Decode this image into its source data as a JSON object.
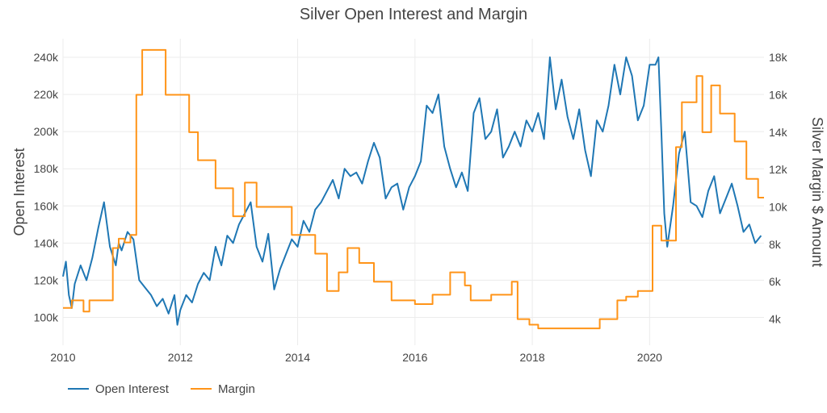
{
  "chart_data": {
    "type": "line",
    "title": "Silver Open Interest and Margin",
    "xlabel": "",
    "ylabel": "Open Interest",
    "y2label": "Silver Margin $ Amount",
    "xlim": [
      2010.0,
      2021.95
    ],
    "ylim": [
      85000,
      250000
    ],
    "y2lim": [
      2600,
      19000
    ],
    "x_ticks": [
      2010,
      2012,
      2014,
      2016,
      2018,
      2020
    ],
    "x_tick_labels": [
      "2010",
      "2012",
      "2014",
      "2016",
      "2018",
      "2020"
    ],
    "y_ticks": [
      100000,
      120000,
      140000,
      160000,
      180000,
      200000,
      220000,
      240000
    ],
    "y_tick_labels": [
      "100k",
      "120k",
      "140k",
      "160k",
      "180k",
      "200k",
      "220k",
      "240k"
    ],
    "y2_ticks": [
      4000,
      6000,
      8000,
      10000,
      12000,
      14000,
      16000,
      18000
    ],
    "y2_tick_labels": [
      "4k",
      "6k",
      "8k",
      "10k",
      "12k",
      "14k",
      "16k",
      "18k"
    ],
    "grid": true,
    "legend_position": "bottom-left",
    "series": [
      {
        "name": "Open Interest",
        "axis": "left",
        "color": "#1f77b4",
        "x": [
          2010.0,
          2010.05,
          2010.1,
          2010.15,
          2010.2,
          2010.3,
          2010.4,
          2010.5,
          2010.6,
          2010.7,
          2010.8,
          2010.9,
          2010.95,
          2011.0,
          2011.1,
          2011.2,
          2011.3,
          2011.4,
          2011.5,
          2011.6,
          2011.7,
          2011.8,
          2011.9,
          2011.95,
          2012.0,
          2012.1,
          2012.2,
          2012.3,
          2012.4,
          2012.5,
          2012.6,
          2012.7,
          2012.8,
          2012.9,
          2013.0,
          2013.1,
          2013.2,
          2013.3,
          2013.4,
          2013.5,
          2013.6,
          2013.7,
          2013.8,
          2013.9,
          2014.0,
          2014.1,
          2014.2,
          2014.3,
          2014.4,
          2014.5,
          2014.6,
          2014.7,
          2014.8,
          2014.9,
          2015.0,
          2015.1,
          2015.2,
          2015.3,
          2015.4,
          2015.5,
          2015.6,
          2015.7,
          2015.8,
          2015.9,
          2016.0,
          2016.1,
          2016.2,
          2016.3,
          2016.4,
          2016.5,
          2016.6,
          2016.7,
          2016.8,
          2016.9,
          2017.0,
          2017.1,
          2017.2,
          2017.3,
          2017.4,
          2017.5,
          2017.6,
          2017.7,
          2017.8,
          2017.9,
          2018.0,
          2018.1,
          2018.2,
          2018.3,
          2018.4,
          2018.5,
          2018.6,
          2018.7,
          2018.8,
          2018.9,
          2019.0,
          2019.1,
          2019.2,
          2019.3,
          2019.4,
          2019.5,
          2019.6,
          2019.7,
          2019.8,
          2019.9,
          2020.0,
          2020.1,
          2020.15,
          2020.2,
          2020.25,
          2020.3,
          2020.4,
          2020.5,
          2020.6,
          2020.7,
          2020.8,
          2020.9,
          2021.0,
          2021.1,
          2021.2,
          2021.3,
          2021.4,
          2021.5,
          2021.6,
          2021.7,
          2021.8,
          2021.9
        ],
        "values": [
          122000,
          130000,
          112000,
          105000,
          118000,
          128000,
          120000,
          132000,
          148000,
          162000,
          138000,
          128000,
          140000,
          136000,
          146000,
          142000,
          120000,
          116000,
          112000,
          106000,
          110000,
          102000,
          112000,
          96000,
          104000,
          112000,
          108000,
          118000,
          124000,
          120000,
          138000,
          128000,
          144000,
          140000,
          150000,
          156000,
          162000,
          138000,
          130000,
          145000,
          115000,
          126000,
          134000,
          142000,
          138000,
          152000,
          146000,
          158000,
          162000,
          168000,
          174000,
          164000,
          180000,
          176000,
          178000,
          172000,
          184000,
          194000,
          186000,
          164000,
          170000,
          172000,
          158000,
          170000,
          176000,
          184000,
          214000,
          210000,
          220000,
          192000,
          180000,
          170000,
          178000,
          168000,
          210000,
          218000,
          196000,
          200000,
          212000,
          186000,
          192000,
          200000,
          192000,
          206000,
          200000,
          210000,
          196000,
          240000,
          212000,
          228000,
          208000,
          196000,
          212000,
          190000,
          176000,
          206000,
          200000,
          214000,
          236000,
          220000,
          240000,
          230000,
          206000,
          214000,
          236000,
          236000,
          240000,
          200000,
          156000,
          138000,
          160000,
          188000,
          200000,
          162000,
          160000,
          154000,
          168000,
          176000,
          156000,
          164000,
          172000,
          160000,
          146000,
          150000,
          140000,
          144000
        ]
      },
      {
        "name": "Margin",
        "axis": "right",
        "color": "#ff9418",
        "x": [
          2010.0,
          2010.15,
          2010.15,
          2010.35,
          2010.35,
          2010.45,
          2010.45,
          2010.85,
          2010.85,
          2010.95,
          2010.95,
          2011.05,
          2011.05,
          2011.15,
          2011.15,
          2011.25,
          2011.25,
          2011.35,
          2011.35,
          2011.75,
          2011.75,
          2012.15,
          2012.15,
          2012.3,
          2012.3,
          2012.6,
          2012.6,
          2012.9,
          2012.9,
          2013.1,
          2013.1,
          2013.3,
          2013.3,
          2013.9,
          2013.9,
          2014.3,
          2014.3,
          2014.5,
          2014.5,
          2014.7,
          2014.7,
          2014.85,
          2014.85,
          2015.05,
          2015.05,
          2015.3,
          2015.3,
          2015.6,
          2015.6,
          2016.0,
          2016.0,
          2016.3,
          2016.3,
          2016.6,
          2016.6,
          2016.85,
          2016.85,
          2016.95,
          2016.95,
          2017.3,
          2017.3,
          2017.65,
          2017.65,
          2017.75,
          2017.75,
          2017.95,
          2017.95,
          2018.1,
          2018.1,
          2019.15,
          2019.15,
          2019.45,
          2019.45,
          2019.6,
          2019.6,
          2019.8,
          2019.8,
          2020.05,
          2020.05,
          2020.2,
          2020.2,
          2020.45,
          2020.45,
          2020.55,
          2020.55,
          2020.8,
          2020.8,
          2020.9,
          2020.9,
          2021.05,
          2021.05,
          2021.2,
          2021.2,
          2021.45,
          2021.45,
          2021.65,
          2021.65,
          2021.85,
          2021.85,
          2021.95
        ],
        "values": [
          4600,
          4600,
          5000,
          5000,
          4400,
          4400,
          5000,
          5000,
          7800,
          7800,
          8300,
          8300,
          8100,
          8100,
          8500,
          8500,
          16000,
          16000,
          18400,
          18400,
          16000,
          16000,
          14000,
          14000,
          12500,
          12500,
          11000,
          11000,
          9500,
          9500,
          11300,
          11300,
          10000,
          10000,
          8500,
          8500,
          7500,
          7500,
          5500,
          5500,
          6500,
          6500,
          7800,
          7800,
          7000,
          7000,
          6000,
          6000,
          5000,
          5000,
          4800,
          4800,
          5300,
          5300,
          6500,
          6500,
          5800,
          5800,
          5000,
          5000,
          5300,
          5300,
          6000,
          6000,
          4000,
          4000,
          3700,
          3700,
          3500,
          3500,
          4000,
          4000,
          5000,
          5000,
          5200,
          5200,
          5500,
          5500,
          9000,
          9000,
          8200,
          8200,
          13200,
          13200,
          15600,
          15600,
          17000,
          17000,
          14000,
          14000,
          16500,
          16500,
          15000,
          15000,
          13500,
          13500,
          11500,
          11500,
          10500,
          10500
        ]
      }
    ]
  }
}
